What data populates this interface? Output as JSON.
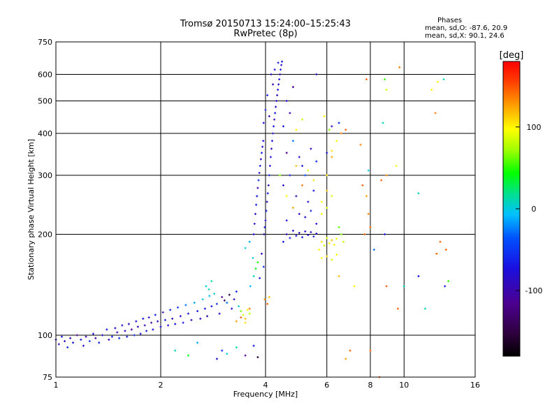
{
  "header": {
    "title_line1": "Tromsø 20150713 15:24:00–15:25:43",
    "title_line2": "RwPretec (8p)",
    "stats_heading": "Phases",
    "stats_o": "mean, sd,O: -87.6, 20.9",
    "stats_x": "mean, sd,X:  90.1, 24.6"
  },
  "colorbar": {
    "label": "[deg]",
    "ticks": [
      {
        "value": 100,
        "label": "100"
      },
      {
        "value": 0,
        "label": "0"
      },
      {
        "value": -100,
        "label": "-100"
      }
    ],
    "range": [
      -180,
      180
    ]
  },
  "chart_data": {
    "type": "scatter",
    "xlabel": "Frequency [MHz]",
    "ylabel": "Stationary phase Virtual Height [km]",
    "x_scale": "log",
    "y_scale": "log",
    "xlim": [
      1,
      16
    ],
    "ylim": [
      75,
      750
    ],
    "grid": true,
    "x_ticks": [
      {
        "value": 1,
        "label": "1"
      },
      {
        "value": 2,
        "label": "2"
      },
      {
        "value": 4,
        "label": "4"
      },
      {
        "value": 6,
        "label": "6"
      },
      {
        "value": 8,
        "label": "8"
      },
      {
        "value": 10,
        "label": "10"
      },
      {
        "value": 16,
        "label": "16"
      }
    ],
    "x_gridlines": [
      1,
      2,
      4,
      6,
      8,
      10,
      16
    ],
    "y_ticks": [
      {
        "value": 75,
        "label": "75"
      },
      {
        "value": 100,
        "label": "100"
      },
      {
        "value": 200,
        "label": "200"
      },
      {
        "value": 300,
        "label": "300"
      },
      {
        "value": 400,
        "label": "400"
      },
      {
        "value": 500,
        "label": "500"
      },
      {
        "value": 600,
        "label": "600"
      },
      {
        "value": 750,
        "label": "750"
      }
    ],
    "y_gridlines": [
      75,
      100,
      200,
      300,
      400,
      500,
      600,
      750
    ],
    "colour_by": "phase_deg",
    "points": [
      [
        1.0,
        97,
        -100
      ],
      [
        1.02,
        94,
        -110
      ],
      [
        1.04,
        99,
        -95
      ],
      [
        1.06,
        96,
        -105
      ],
      [
        1.08,
        92,
        -90
      ],
      [
        1.1,
        98,
        -112
      ],
      [
        1.12,
        95,
        -100
      ],
      [
        1.15,
        100,
        -120
      ],
      [
        1.18,
        97,
        -98
      ],
      [
        1.2,
        93,
        -104
      ],
      [
        1.22,
        99,
        -115
      ],
      [
        1.25,
        96,
        -85
      ],
      [
        1.28,
        101,
        -102
      ],
      [
        1.3,
        98,
        -118
      ],
      [
        1.33,
        95,
        -95
      ],
      [
        1.36,
        100,
        -108
      ],
      [
        1.4,
        104,
        -100
      ],
      [
        1.42,
        97,
        -112
      ],
      [
        1.45,
        99,
        -96
      ],
      [
        1.48,
        105,
        -105
      ],
      [
        1.5,
        102,
        -115
      ],
      [
        1.52,
        98,
        -90
      ],
      [
        1.55,
        107,
        -100
      ],
      [
        1.58,
        103,
        -110
      ],
      [
        1.6,
        99,
        -95
      ],
      [
        1.62,
        108,
        -106
      ],
      [
        1.65,
        104,
        -120
      ],
      [
        1.68,
        100,
        -92
      ],
      [
        1.7,
        110,
        -104
      ],
      [
        1.72,
        106,
        -114
      ],
      [
        1.75,
        101,
        -100
      ],
      [
        1.78,
        112,
        -98
      ],
      [
        1.8,
        107,
        -110
      ],
      [
        1.82,
        103,
        -93
      ],
      [
        1.85,
        113,
        -105
      ],
      [
        1.88,
        109,
        -118
      ],
      [
        1.9,
        104,
        -100
      ],
      [
        1.93,
        115,
        -95
      ],
      [
        1.96,
        110,
        -108
      ],
      [
        2.0,
        106,
        -102
      ],
      [
        2.03,
        117,
        -115
      ],
      [
        2.06,
        111,
        -96
      ],
      [
        2.1,
        107,
        -104
      ],
      [
        2.13,
        119,
        -90
      ],
      [
        2.16,
        112,
        -110
      ],
      [
        2.2,
        108,
        -100
      ],
      [
        2.24,
        121,
        -85
      ],
      [
        2.28,
        114,
        -106
      ],
      [
        2.32,
        109,
        -98
      ],
      [
        2.36,
        123,
        -60
      ],
      [
        2.4,
        116,
        -100
      ],
      [
        2.45,
        111,
        -112
      ],
      [
        2.5,
        125,
        -40
      ],
      [
        2.55,
        118,
        -95
      ],
      [
        2.6,
        112,
        -104
      ],
      [
        2.64,
        128,
        -20
      ],
      [
        2.68,
        120,
        -98
      ],
      [
        2.72,
        114,
        -110
      ],
      [
        2.76,
        131,
        -30
      ],
      [
        2.8,
        122,
        -100
      ],
      [
        2.85,
        133,
        -15
      ],
      [
        2.9,
        124,
        -90
      ],
      [
        2.95,
        116,
        -105
      ],
      [
        2.7,
        140,
        -20
      ],
      [
        2.75,
        137,
        -10
      ],
      [
        2.8,
        145,
        0
      ],
      [
        3.0,
        130,
        -120
      ],
      [
        3.05,
        127,
        -140
      ],
      [
        3.1,
        125,
        -60
      ],
      [
        3.15,
        132,
        -150
      ],
      [
        3.2,
        120,
        -100
      ],
      [
        3.25,
        128,
        -110
      ],
      [
        3.3,
        135,
        -90
      ],
      [
        3.35,
        122,
        -20
      ],
      [
        3.4,
        118,
        60
      ],
      [
        3.45,
        115,
        90
      ],
      [
        3.5,
        112,
        120
      ],
      [
        3.55,
        119,
        100
      ],
      [
        3.6,
        116,
        80
      ],
      [
        3.3,
        110,
        130
      ],
      [
        3.4,
        113,
        150
      ],
      [
        3.5,
        109,
        110
      ],
      [
        3.6,
        120,
        140
      ],
      [
        3.62,
        140,
        -30
      ],
      [
        3.7,
        150,
        -10
      ],
      [
        3.75,
        158,
        20
      ],
      [
        3.68,
        170,
        -20
      ],
      [
        3.8,
        165,
        30
      ],
      [
        3.85,
        148,
        -100
      ],
      [
        3.9,
        175,
        -110
      ],
      [
        3.95,
        160,
        -90
      ],
      [
        3.5,
        182,
        -20
      ],
      [
        3.6,
        190,
        -40
      ],
      [
        3.98,
        128,
        130
      ],
      [
        4.05,
        124,
        150
      ],
      [
        4.1,
        130,
        120
      ],
      [
        2.9,
        85,
        -100
      ],
      [
        3.0,
        90,
        -90
      ],
      [
        3.1,
        88,
        -20
      ],
      [
        3.3,
        92,
        0
      ],
      [
        3.5,
        87,
        -120
      ],
      [
        3.7,
        93,
        -100
      ],
      [
        3.8,
        86,
        -150
      ],
      [
        2.55,
        95,
        -40
      ],
      [
        2.4,
        87,
        20
      ],
      [
        2.2,
        90,
        -10
      ],
      [
        3.7,
        200,
        -100
      ],
      [
        3.72,
        215,
        -105
      ],
      [
        3.74,
        230,
        -110
      ],
      [
        3.76,
        245,
        -95
      ],
      [
        3.78,
        260,
        -100
      ],
      [
        3.8,
        275,
        -115
      ],
      [
        3.82,
        290,
        -90
      ],
      [
        3.84,
        305,
        -105
      ],
      [
        3.86,
        320,
        -100
      ],
      [
        3.88,
        335,
        -110
      ],
      [
        3.9,
        350,
        -95
      ],
      [
        3.92,
        365,
        -105
      ],
      [
        3.94,
        380,
        -100
      ],
      [
        3.96,
        200,
        -112
      ],
      [
        3.98,
        210,
        -98
      ],
      [
        4.0,
        220,
        -105
      ],
      [
        4.02,
        235,
        -95
      ],
      [
        4.04,
        250,
        -110
      ],
      [
        4.06,
        265,
        -100
      ],
      [
        4.08,
        280,
        -108
      ],
      [
        4.1,
        300,
        -95
      ],
      [
        4.12,
        320,
        -105
      ],
      [
        4.14,
        340,
        -100
      ],
      [
        4.16,
        360,
        -110
      ],
      [
        4.18,
        380,
        -98
      ],
      [
        4.2,
        400,
        -105
      ],
      [
        4.22,
        420,
        -100
      ],
      [
        4.24,
        440,
        -110
      ],
      [
        4.26,
        460,
        -95
      ],
      [
        4.28,
        480,
        -105
      ],
      [
        4.3,
        500,
        -100
      ],
      [
        4.32,
        520,
        -110
      ],
      [
        4.34,
        540,
        -98
      ],
      [
        4.36,
        560,
        -105
      ],
      [
        4.38,
        580,
        -100
      ],
      [
        4.4,
        600,
        -110
      ],
      [
        4.42,
        620,
        -95
      ],
      [
        4.44,
        640,
        -105
      ],
      [
        4.46,
        655,
        -100
      ],
      [
        4.1,
        450,
        -112
      ],
      [
        4.05,
        520,
        -95
      ],
      [
        4.15,
        600,
        -108
      ],
      [
        3.95,
        430,
        -102
      ],
      [
        4.0,
        470,
        -96
      ],
      [
        4.2,
        560,
        -112
      ],
      [
        4.25,
        620,
        -100
      ],
      [
        4.35,
        650,
        -95
      ],
      [
        4.5,
        190,
        -100
      ],
      [
        4.6,
        200,
        -110
      ],
      [
        4.7,
        195,
        -95
      ],
      [
        4.8,
        205,
        -105
      ],
      [
        4.9,
        198,
        -100
      ],
      [
        5.0,
        202,
        -110
      ],
      [
        5.1,
        196,
        -98
      ],
      [
        5.2,
        204,
        -105
      ],
      [
        5.3,
        199,
        -100
      ],
      [
        5.4,
        203,
        -110
      ],
      [
        5.5,
        197,
        -95
      ],
      [
        5.6,
        201,
        -105
      ],
      [
        4.5,
        280,
        -105
      ],
      [
        4.7,
        300,
        -95
      ],
      [
        4.9,
        260,
        -110
      ],
      [
        5.1,
        320,
        -100
      ],
      [
        5.3,
        250,
        -105
      ],
      [
        5.5,
        270,
        -98
      ],
      [
        4.6,
        350,
        -120
      ],
      [
        4.8,
        380,
        -60
      ],
      [
        5.0,
        340,
        -100
      ],
      [
        5.2,
        300,
        -80
      ],
      [
        5.4,
        360,
        -110
      ],
      [
        5.6,
        330,
        -90
      ],
      [
        4.6,
        220,
        -100
      ],
      [
        4.8,
        240,
        -90
      ],
      [
        5.0,
        230,
        -110
      ],
      [
        5.2,
        225,
        -105
      ],
      [
        5.4,
        235,
        -95
      ],
      [
        5.6,
        215,
        -100
      ],
      [
        4.5,
        420,
        -100
      ],
      [
        4.7,
        460,
        -110
      ],
      [
        4.9,
        410,
        100
      ],
      [
        5.1,
        440,
        80
      ],
      [
        4.6,
        500,
        -100
      ],
      [
        4.8,
        550,
        -120
      ],
      [
        5.6,
        600,
        -110
      ],
      [
        4.9,
        320,
        120
      ],
      [
        5.1,
        280,
        140
      ],
      [
        5.3,
        310,
        90
      ],
      [
        5.5,
        290,
        110
      ],
      [
        4.4,
        300,
        60
      ],
      [
        4.6,
        260,
        100
      ],
      [
        4.8,
        240,
        120
      ],
      [
        5.7,
        180,
        100
      ],
      [
        5.8,
        190,
        110
      ],
      [
        5.9,
        185,
        80
      ],
      [
        6.0,
        195,
        90
      ],
      [
        6.1,
        188,
        100
      ],
      [
        6.2,
        192,
        120
      ],
      [
        6.3,
        186,
        105
      ],
      [
        6.4,
        194,
        95
      ],
      [
        5.8,
        170,
        100
      ],
      [
        6.0,
        172,
        110
      ],
      [
        6.2,
        168,
        90
      ],
      [
        6.4,
        174,
        100
      ],
      [
        6.6,
        200,
        60
      ],
      [
        6.7,
        190,
        80
      ],
      [
        6.5,
        210,
        50
      ],
      [
        5.8,
        250,
        100
      ],
      [
        6.0,
        270,
        120
      ],
      [
        6.2,
        260,
        90
      ],
      [
        6.0,
        300,
        110
      ],
      [
        6.2,
        340,
        130
      ],
      [
        6.4,
        380,
        100
      ],
      [
        6.6,
        400,
        140
      ],
      [
        6.0,
        350,
        -100
      ],
      [
        6.2,
        420,
        -110
      ],
      [
        6.5,
        430,
        -90
      ],
      [
        6.8,
        410,
        150
      ],
      [
        5.9,
        450,
        100
      ],
      [
        6.1,
        410,
        60
      ],
      [
        6.2,
        355,
        110
      ],
      [
        5.8,
        230,
        100
      ],
      [
        6.0,
        240,
        90
      ],
      [
        7.6,
        280,
        150
      ],
      [
        7.8,
        260,
        130
      ],
      [
        7.9,
        230,
        140
      ],
      [
        7.7,
        200,
        150
      ],
      [
        7.5,
        370,
        140
      ],
      [
        7.9,
        310,
        -20
      ],
      [
        8.0,
        210,
        150
      ],
      [
        8.2,
        180,
        -60
      ],
      [
        7.8,
        580,
        150
      ],
      [
        8.8,
        580,
        40
      ],
      [
        8.9,
        540,
        80
      ],
      [
        8.7,
        430,
        -10
      ],
      [
        8.6,
        290,
        150
      ],
      [
        8.9,
        300,
        140
      ],
      [
        9.5,
        320,
        100
      ],
      [
        9.7,
        630,
        140
      ],
      [
        8.8,
        200,
        -100
      ],
      [
        8.9,
        140,
        150
      ],
      [
        9.6,
        120,
        150
      ],
      [
        10.0,
        140,
        -10
      ],
      [
        11.0,
        150,
        -100
      ],
      [
        11.5,
        120,
        -10
      ],
      [
        11.0,
        265,
        -10
      ],
      [
        12.0,
        540,
        100
      ],
      [
        12.3,
        460,
        140
      ],
      [
        12.5,
        570,
        100
      ],
      [
        12.7,
        190,
        150
      ],
      [
        12.4,
        175,
        150
      ],
      [
        13.0,
        580,
        -10
      ],
      [
        13.2,
        180,
        150
      ],
      [
        13.4,
        145,
        40
      ],
      [
        13.1,
        140,
        -100
      ],
      [
        7.0,
        90,
        150
      ],
      [
        6.8,
        85,
        130
      ],
      [
        8.5,
        75,
        150
      ],
      [
        8.0,
        90,
        150
      ],
      [
        6.5,
        150,
        120
      ],
      [
        7.2,
        140,
        100
      ]
    ]
  }
}
